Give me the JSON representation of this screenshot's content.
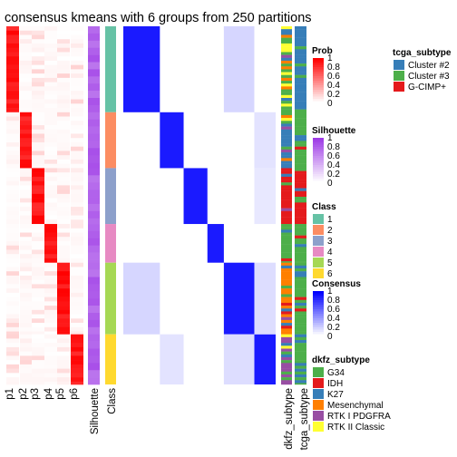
{
  "chart_data": {
    "type": "heatmap",
    "title": "consensus kmeans with 6 groups from 250 partitions",
    "groups": [
      1,
      2,
      3,
      4,
      5,
      6
    ],
    "group_fraction": [
      0.24,
      0.156,
      0.154,
      0.107,
      0.2,
      0.143
    ],
    "prob_columns": [
      "p1",
      "p2",
      "p3",
      "p4",
      "p5",
      "p6"
    ],
    "column_labels": [
      "p1",
      "p2",
      "p3",
      "p4",
      "p5",
      "p6",
      "Silhouette",
      "Class",
      "dkfz_subtype",
      "tcga_subtype"
    ],
    "class_colors": {
      "1": "#66C2A5",
      "2": "#FC8D62",
      "3": "#8DA0CB",
      "4": "#E78AC3",
      "5": "#A6D854",
      "6": "#FFD92F"
    },
    "legends": {
      "prob": {
        "title": "Prob",
        "ticks": [
          "1",
          "0.8",
          "0.6",
          "0.4",
          "0.2",
          "0"
        ],
        "low": "#FFFFFF",
        "high": "#FF0000"
      },
      "silhouette": {
        "title": "Silhouette",
        "ticks": [
          "1",
          "0.8",
          "0.6",
          "0.4",
          "0.2",
          "0"
        ],
        "low": "#FFFFFF",
        "high": "#9E3BE6"
      },
      "class": {
        "title": "Class",
        "items": [
          "1",
          "2",
          "3",
          "4",
          "5",
          "6"
        ],
        "colors": [
          "#66C2A5",
          "#FC8D62",
          "#8DA0CB",
          "#E78AC3",
          "#A6D854",
          "#FFD92F"
        ]
      },
      "consensus": {
        "title": "Consensus",
        "ticks": [
          "1",
          "0.8",
          "0.6",
          "0.4",
          "0.2",
          "0"
        ],
        "low": "#FFFFFF",
        "high": "#0000FF"
      },
      "dkfz_subtype": {
        "title": "dkfz_subtype",
        "items": [
          "G34",
          "IDH",
          "K27",
          "Mesenchymal",
          "RTK I PDGFRA",
          "RTK II Classic"
        ],
        "colors": [
          "#4DAF4A",
          "#E41A1C",
          "#377EB8",
          "#FF7F00",
          "#984EA3",
          "#FFFF33"
        ]
      },
      "tcga_subtype": {
        "title": "tcga_subtype",
        "items": [
          "Cluster #2",
          "Cluster #3",
          "G-CIMP+"
        ],
        "colors": [
          "#377EB8",
          "#4DAF4A",
          "#E41A1C"
        ]
      }
    }
  }
}
